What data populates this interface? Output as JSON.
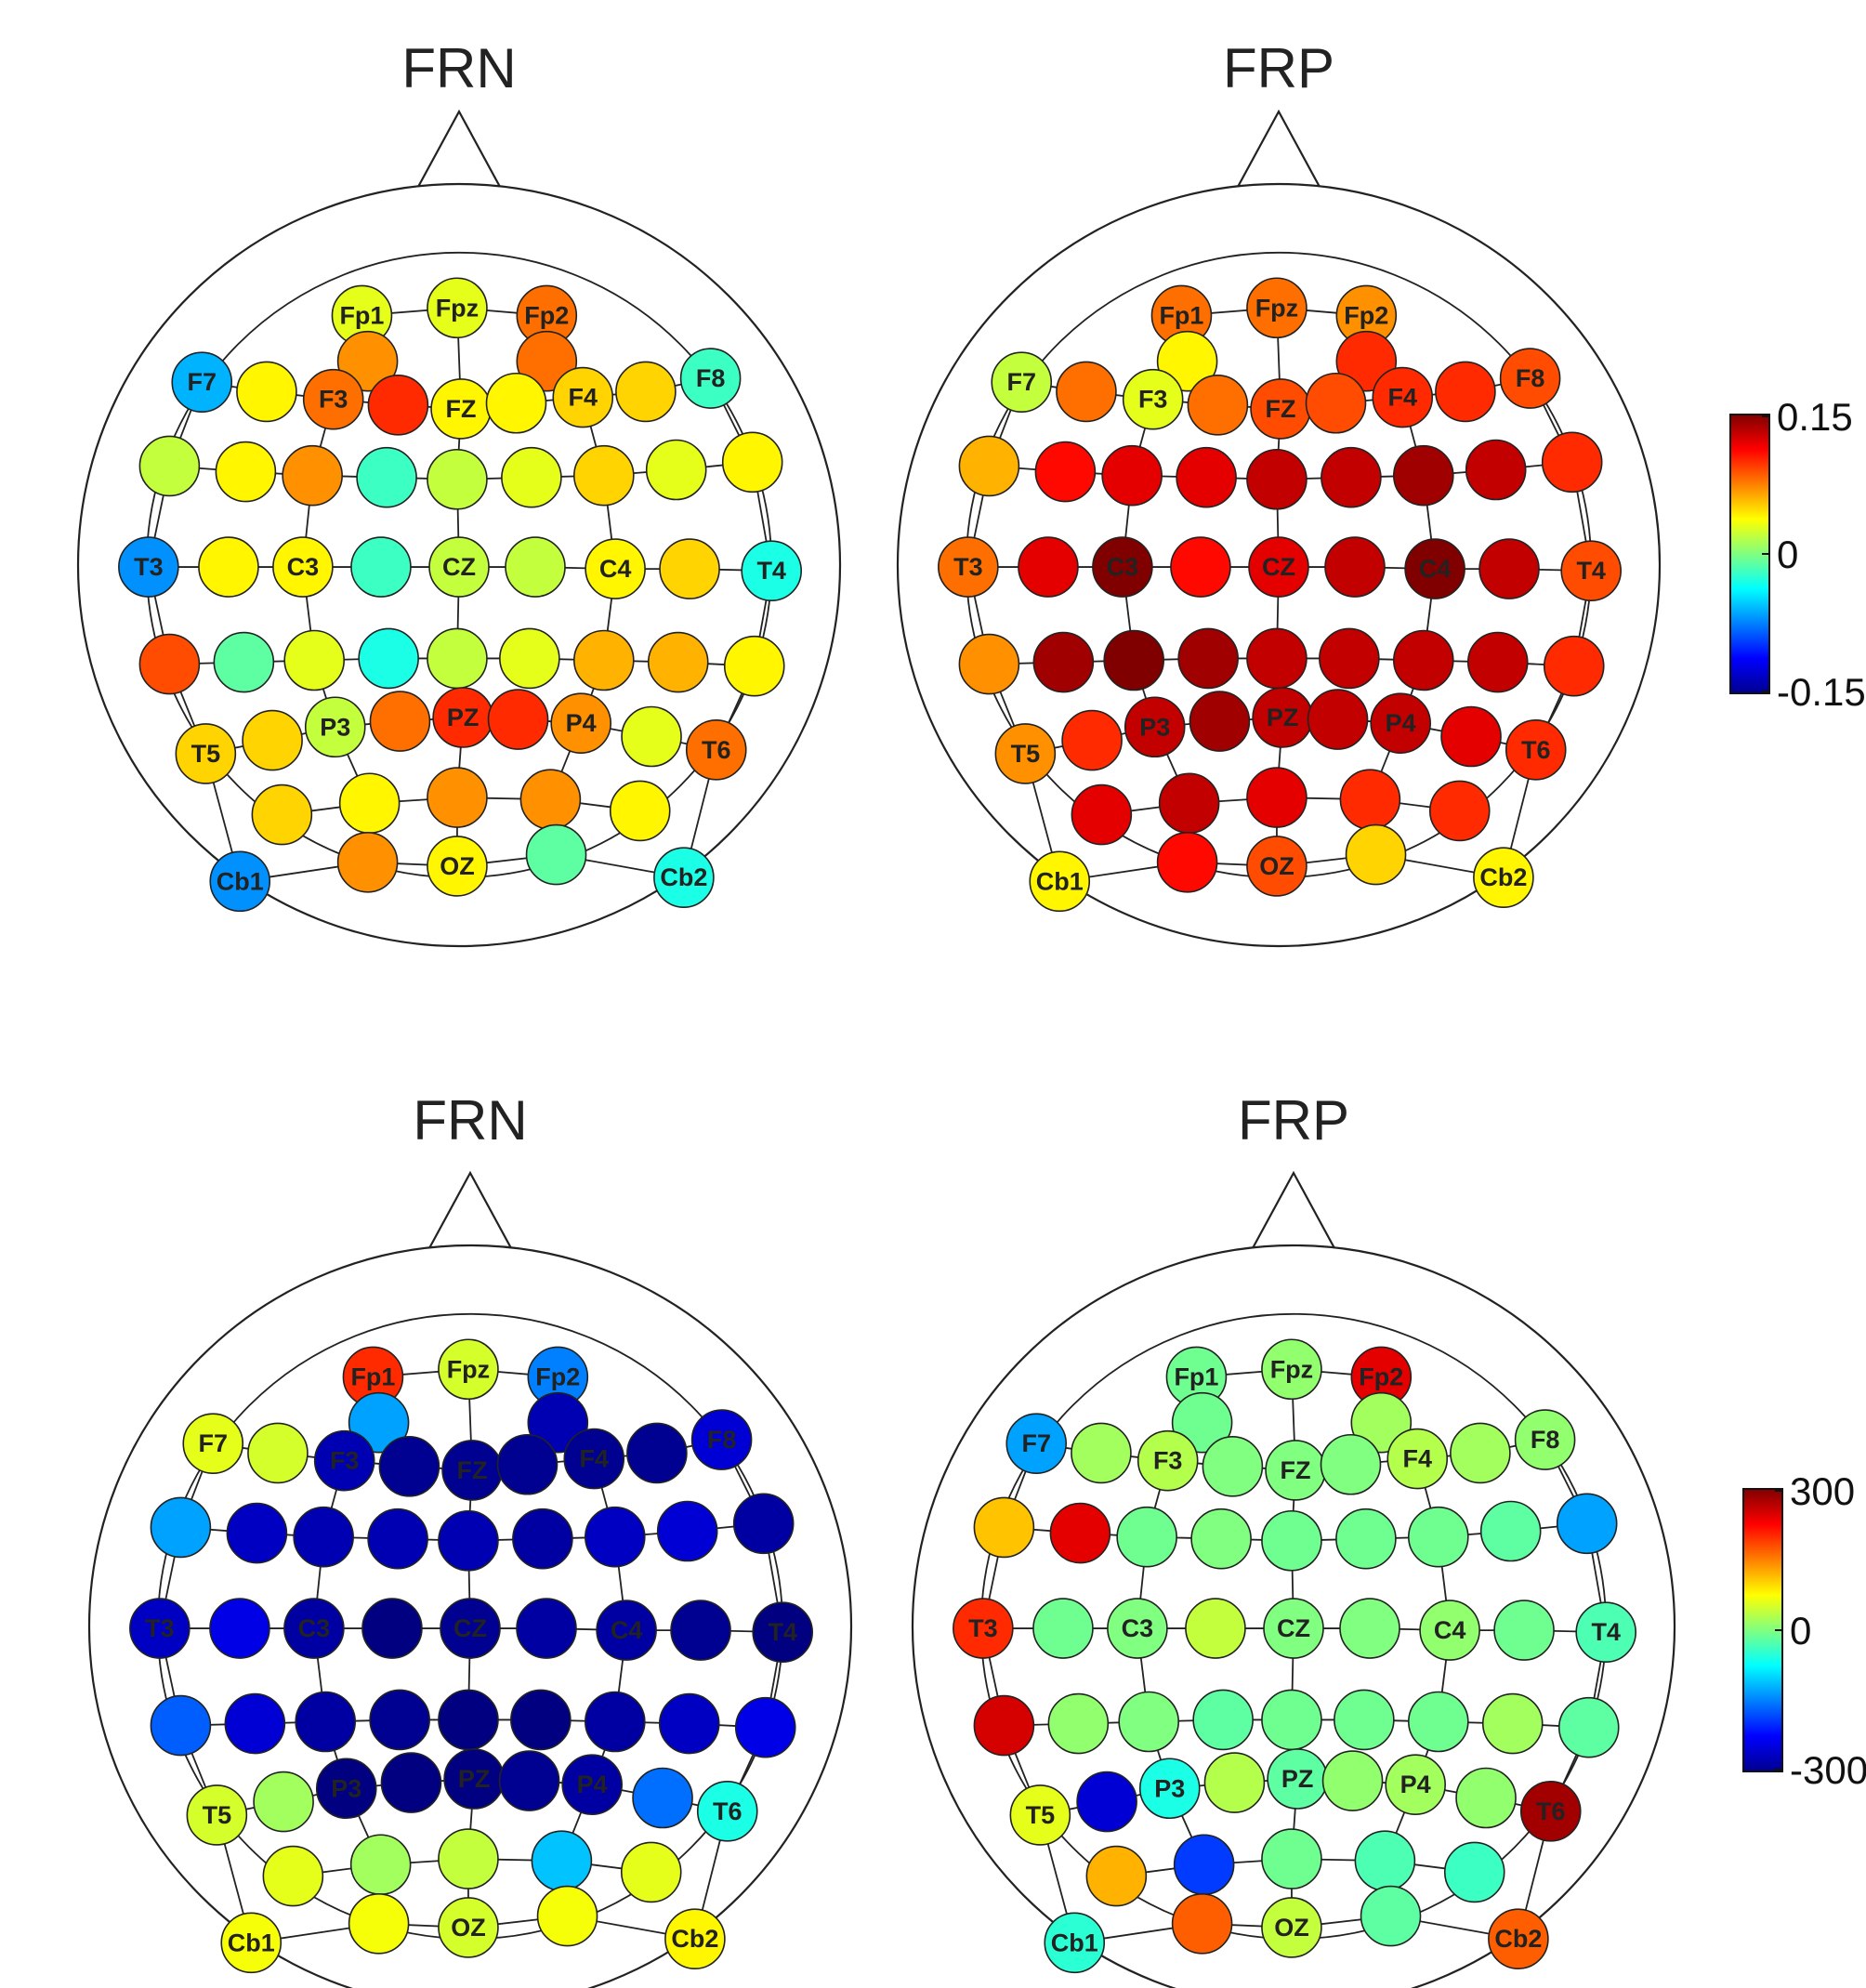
{
  "chart_data": [
    {
      "type": "topographic-map",
      "title": "FRN",
      "color_scale": "jet",
      "colorbar": {
        "min": -0.15,
        "max": 0.15,
        "ticks": [
          "0.15",
          "0",
          "-0.15"
        ]
      },
      "electrodes": [
        {
          "label": "Fp1",
          "value": 0.03
        },
        {
          "label": "Fpz",
          "value": 0.03
        },
        {
          "label": "Fp2",
          "value": 0.08
        },
        {
          "label": "",
          "value": 0.07
        },
        {
          "label": "",
          "value": 0.08
        },
        {
          "label": "F7",
          "value": -0.06
        },
        {
          "label": "",
          "value": 0.04
        },
        {
          "label": "F3",
          "value": 0.08
        },
        {
          "label": "",
          "value": 0.1
        },
        {
          "label": "FZ",
          "value": 0.04
        },
        {
          "label": "",
          "value": 0.04
        },
        {
          "label": "F4",
          "value": 0.05
        },
        {
          "label": "",
          "value": 0.05
        },
        {
          "label": "F8",
          "value": -0.02
        },
        {
          "label": "",
          "value": 0.02
        },
        {
          "label": "",
          "value": 0.04
        },
        {
          "label": "",
          "value": 0.07
        },
        {
          "label": "",
          "value": -0.02
        },
        {
          "label": "",
          "value": 0.02
        },
        {
          "label": "",
          "value": 0.03
        },
        {
          "label": "",
          "value": 0.05
        },
        {
          "label": "",
          "value": 0.03
        },
        {
          "label": "",
          "value": 0.04
        },
        {
          "label": "T3",
          "value": -0.07
        },
        {
          "label": "",
          "value": 0.04
        },
        {
          "label": "C3",
          "value": 0.04
        },
        {
          "label": "",
          "value": -0.02
        },
        {
          "label": "CZ",
          "value": 0.02
        },
        {
          "label": "",
          "value": 0.02
        },
        {
          "label": "C4",
          "value": 0.04
        },
        {
          "label": "",
          "value": 0.05
        },
        {
          "label": "T4",
          "value": -0.03
        },
        {
          "label": "",
          "value": 0.09
        },
        {
          "label": "",
          "value": -0.01
        },
        {
          "label": "",
          "value": 0.03
        },
        {
          "label": "",
          "value": -0.03
        },
        {
          "label": "",
          "value": 0.02
        },
        {
          "label": "",
          "value": 0.03
        },
        {
          "label": "",
          "value": 0.06
        },
        {
          "label": "",
          "value": 0.06
        },
        {
          "label": "",
          "value": 0.04
        },
        {
          "label": "T5",
          "value": 0.05
        },
        {
          "label": "",
          "value": 0.05
        },
        {
          "label": "P3",
          "value": 0.02
        },
        {
          "label": "",
          "value": 0.08
        },
        {
          "label": "PZ",
          "value": 0.1
        },
        {
          "label": "",
          "value": 0.1
        },
        {
          "label": "P4",
          "value": 0.07
        },
        {
          "label": "",
          "value": 0.03
        },
        {
          "label": "T6",
          "value": 0.08
        },
        {
          "label": "",
          "value": 0.05
        },
        {
          "label": "",
          "value": 0.04
        },
        {
          "label": "",
          "value": 0.07
        },
        {
          "label": "",
          "value": 0.07
        },
        {
          "label": "",
          "value": 0.04
        },
        {
          "label": "Cb1",
          "value": -0.07
        },
        {
          "label": "",
          "value": 0.07
        },
        {
          "label": "OZ",
          "value": 0.04
        },
        {
          "label": "",
          "value": -0.01
        },
        {
          "label": "Cb2",
          "value": -0.03
        }
      ]
    },
    {
      "type": "topographic-map",
      "title": "FRP",
      "color_scale": "jet",
      "colorbar": {
        "min": -0.15,
        "max": 0.15,
        "ticks": [
          "0.15",
          "0",
          "-0.15"
        ]
      },
      "electrodes": [
        {
          "label": "Fp1",
          "value": 0.08
        },
        {
          "label": "Fpz",
          "value": 0.08
        },
        {
          "label": "Fp2",
          "value": 0.07
        },
        {
          "label": "",
          "value": 0.04
        },
        {
          "label": "",
          "value": 0.1
        },
        {
          "label": "F7",
          "value": 0.02
        },
        {
          "label": "",
          "value": 0.08
        },
        {
          "label": "F3",
          "value": 0.03
        },
        {
          "label": "",
          "value": 0.08
        },
        {
          "label": "FZ",
          "value": 0.09
        },
        {
          "label": "",
          "value": 0.09
        },
        {
          "label": "F4",
          "value": 0.1
        },
        {
          "label": "",
          "value": 0.1
        },
        {
          "label": "F8",
          "value": 0.09
        },
        {
          "label": "",
          "value": 0.06
        },
        {
          "label": "",
          "value": 0.11
        },
        {
          "label": "",
          "value": 0.12
        },
        {
          "label": "",
          "value": 0.12
        },
        {
          "label": "",
          "value": 0.13
        },
        {
          "label": "",
          "value": 0.13
        },
        {
          "label": "",
          "value": 0.14
        },
        {
          "label": "",
          "value": 0.13
        },
        {
          "label": "",
          "value": 0.1
        },
        {
          "label": "T3",
          "value": 0.08
        },
        {
          "label": "",
          "value": 0.12
        },
        {
          "label": "C3",
          "value": 0.15
        },
        {
          "label": "",
          "value": 0.11
        },
        {
          "label": "CZ",
          "value": 0.12
        },
        {
          "label": "",
          "value": 0.13
        },
        {
          "label": "C4",
          "value": 0.15
        },
        {
          "label": "",
          "value": 0.13
        },
        {
          "label": "T4",
          "value": 0.09
        },
        {
          "label": "",
          "value": 0.07
        },
        {
          "label": "",
          "value": 0.14
        },
        {
          "label": "",
          "value": 0.15
        },
        {
          "label": "",
          "value": 0.14
        },
        {
          "label": "",
          "value": 0.13
        },
        {
          "label": "",
          "value": 0.13
        },
        {
          "label": "",
          "value": 0.13
        },
        {
          "label": "",
          "value": 0.13
        },
        {
          "label": "",
          "value": 0.1
        },
        {
          "label": "T5",
          "value": 0.07
        },
        {
          "label": "",
          "value": 0.1
        },
        {
          "label": "P3",
          "value": 0.13
        },
        {
          "label": "",
          "value": 0.14
        },
        {
          "label": "PZ",
          "value": 0.13
        },
        {
          "label": "",
          "value": 0.13
        },
        {
          "label": "P4",
          "value": 0.13
        },
        {
          "label": "",
          "value": 0.12
        },
        {
          "label": "T6",
          "value": 0.1
        },
        {
          "label": "",
          "value": 0.12
        },
        {
          "label": "",
          "value": 0.13
        },
        {
          "label": "",
          "value": 0.12
        },
        {
          "label": "",
          "value": 0.1
        },
        {
          "label": "",
          "value": 0.1
        },
        {
          "label": "Cb1",
          "value": 0.04
        },
        {
          "label": "",
          "value": 0.11
        },
        {
          "label": "OZ",
          "value": 0.09
        },
        {
          "label": "",
          "value": 0.05
        },
        {
          "label": "Cb2",
          "value": 0.04
        }
      ]
    },
    {
      "type": "topographic-map",
      "title": "FRN",
      "color_scale": "jet",
      "colorbar": {
        "min": -300,
        "max": 300,
        "ticks": [
          "300",
          "0",
          "-300"
        ]
      },
      "electrodes": [
        {
          "label": "Fp1",
          "value": 200
        },
        {
          "label": "Fpz",
          "value": 50
        },
        {
          "label": "Fp2",
          "value": -150
        },
        {
          "label": "",
          "value": -130
        },
        {
          "label": "",
          "value": -270
        },
        {
          "label": "F7",
          "value": 60
        },
        {
          "label": "",
          "value": 50
        },
        {
          "label": "F3",
          "value": -270
        },
        {
          "label": "",
          "value": -290
        },
        {
          "label": "FZ",
          "value": -290
        },
        {
          "label": "",
          "value": -290
        },
        {
          "label": "F4",
          "value": -290
        },
        {
          "label": "",
          "value": -290
        },
        {
          "label": "F8",
          "value": -250
        },
        {
          "label": "",
          "value": -130
        },
        {
          "label": "",
          "value": -260
        },
        {
          "label": "",
          "value": -270
        },
        {
          "label": "",
          "value": -270
        },
        {
          "label": "",
          "value": -270
        },
        {
          "label": "",
          "value": -280
        },
        {
          "label": "",
          "value": -260
        },
        {
          "label": "",
          "value": -250
        },
        {
          "label": "",
          "value": -280
        },
        {
          "label": "T3",
          "value": -260
        },
        {
          "label": "",
          "value": -240
        },
        {
          "label": "C3",
          "value": -280
        },
        {
          "label": "",
          "value": -300
        },
        {
          "label": "CZ",
          "value": -290
        },
        {
          "label": "",
          "value": -280
        },
        {
          "label": "C4",
          "value": -280
        },
        {
          "label": "",
          "value": -290
        },
        {
          "label": "T4",
          "value": -300
        },
        {
          "label": "",
          "value": -170
        },
        {
          "label": "",
          "value": -250
        },
        {
          "label": "",
          "value": -280
        },
        {
          "label": "",
          "value": -290
        },
        {
          "label": "",
          "value": -300
        },
        {
          "label": "",
          "value": -300
        },
        {
          "label": "",
          "value": -280
        },
        {
          "label": "",
          "value": -260
        },
        {
          "label": "",
          "value": -240
        },
        {
          "label": "T5",
          "value": 50
        },
        {
          "label": "",
          "value": 20
        },
        {
          "label": "P3",
          "value": -300
        },
        {
          "label": "",
          "value": -300
        },
        {
          "label": "PZ",
          "value": -300
        },
        {
          "label": "",
          "value": -290
        },
        {
          "label": "P4",
          "value": -280
        },
        {
          "label": "",
          "value": -160
        },
        {
          "label": "T6",
          "value": -60
        },
        {
          "label": "",
          "value": 60
        },
        {
          "label": "",
          "value": 20
        },
        {
          "label": "",
          "value": 40
        },
        {
          "label": "",
          "value": -110
        },
        {
          "label": "",
          "value": 60
        },
        {
          "label": "Cb1",
          "value": 70
        },
        {
          "label": "",
          "value": 70
        },
        {
          "label": "OZ",
          "value": 50
        },
        {
          "label": "",
          "value": 70
        },
        {
          "label": "Cb2",
          "value": 80
        }
      ]
    },
    {
      "type": "topographic-map",
      "title": "FRP",
      "color_scale": "jet",
      "colorbar": {
        "min": -300,
        "max": 300,
        "ticks": [
          "300",
          "0",
          "-300"
        ]
      },
      "electrodes": [
        {
          "label": "Fp1",
          "value": -10
        },
        {
          "label": "Fpz",
          "value": 10
        },
        {
          "label": "Fp2",
          "value": 240
        },
        {
          "label": "",
          "value": -10
        },
        {
          "label": "",
          "value": 20
        },
        {
          "label": "F7",
          "value": -130
        },
        {
          "label": "",
          "value": 20
        },
        {
          "label": "F3",
          "value": 30
        },
        {
          "label": "",
          "value": 0
        },
        {
          "label": "FZ",
          "value": 0
        },
        {
          "label": "",
          "value": 0
        },
        {
          "label": "F4",
          "value": 30
        },
        {
          "label": "",
          "value": 20
        },
        {
          "label": "F8",
          "value": 10
        },
        {
          "label": "",
          "value": 110
        },
        {
          "label": "",
          "value": 240
        },
        {
          "label": "",
          "value": -10
        },
        {
          "label": "",
          "value": 0
        },
        {
          "label": "",
          "value": -10
        },
        {
          "label": "",
          "value": -10
        },
        {
          "label": "",
          "value": -10
        },
        {
          "label": "",
          "value": -20
        },
        {
          "label": "",
          "value": -130
        },
        {
          "label": "T3",
          "value": 200
        },
        {
          "label": "",
          "value": -10
        },
        {
          "label": "C3",
          "value": 0
        },
        {
          "label": "",
          "value": 40
        },
        {
          "label": "CZ",
          "value": 0
        },
        {
          "label": "",
          "value": 0
        },
        {
          "label": "C4",
          "value": 10
        },
        {
          "label": "",
          "value": -10
        },
        {
          "label": "T4",
          "value": -30
        },
        {
          "label": "",
          "value": 250
        },
        {
          "label": "",
          "value": 10
        },
        {
          "label": "",
          "value": 0
        },
        {
          "label": "",
          "value": -20
        },
        {
          "label": "",
          "value": -10
        },
        {
          "label": "",
          "value": -10
        },
        {
          "label": "",
          "value": -10
        },
        {
          "label": "",
          "value": 20
        },
        {
          "label": "",
          "value": -20
        },
        {
          "label": "T5",
          "value": 60
        },
        {
          "label": "",
          "value": -250
        },
        {
          "label": "P3",
          "value": -60
        },
        {
          "label": "",
          "value": 30
        },
        {
          "label": "PZ",
          "value": -20
        },
        {
          "label": "",
          "value": 10
        },
        {
          "label": "P4",
          "value": 20
        },
        {
          "label": "",
          "value": 10
        },
        {
          "label": "T6",
          "value": 280
        },
        {
          "label": "",
          "value": 120
        },
        {
          "label": "",
          "value": -190
        },
        {
          "label": "",
          "value": -10
        },
        {
          "label": "",
          "value": -30
        },
        {
          "label": "",
          "value": -40
        },
        {
          "label": "Cb1",
          "value": -50
        },
        {
          "label": "",
          "value": 170
        },
        {
          "label": "OZ",
          "value": 40
        },
        {
          "label": "",
          "value": -20
        },
        {
          "label": "Cb2",
          "value": 170
        }
      ]
    }
  ]
}
